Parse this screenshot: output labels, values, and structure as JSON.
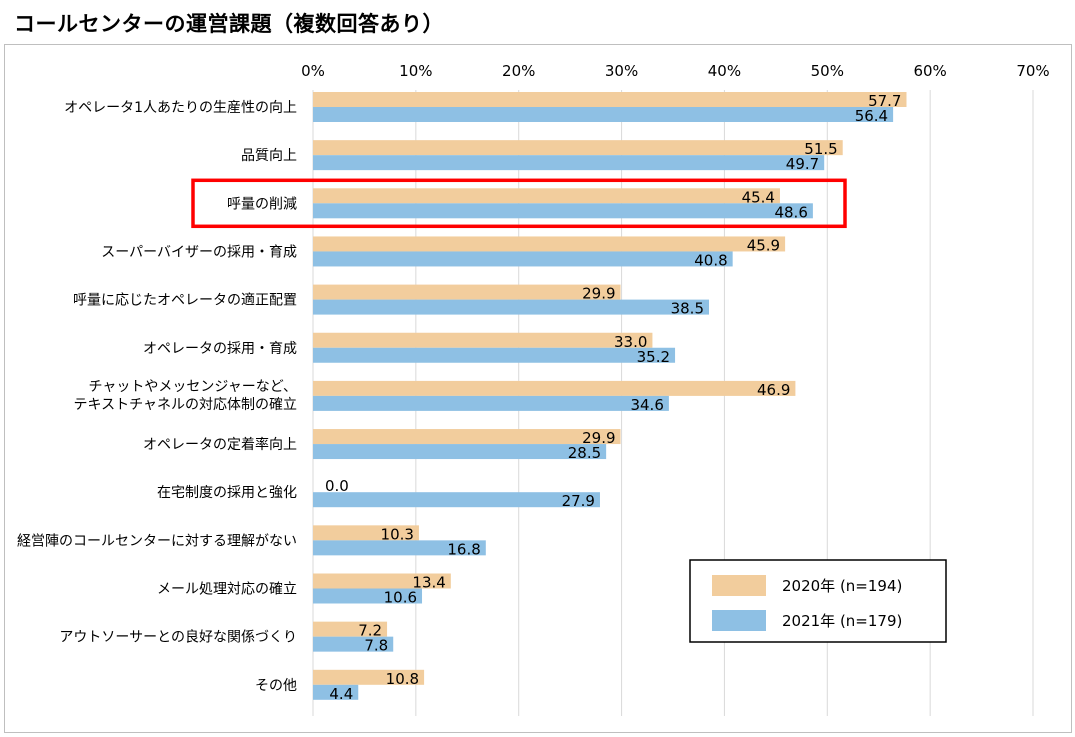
{
  "page_title": "コールセンターの運営課題（複数回答あり）",
  "colors": {
    "series_2020": "#f2cd9d",
    "series_2021": "#8ec0e4",
    "highlight": "#ff0000",
    "grid": "#d9d9d9"
  },
  "chart_data": {
    "type": "bar",
    "orientation": "horizontal",
    "title": "コールセンターの運営課題（複数回答あり）",
    "xlim": [
      0,
      70
    ],
    "x_ticks": [
      "0%",
      "10%",
      "20%",
      "30%",
      "40%",
      "50%",
      "60%",
      "70%"
    ],
    "x_tick_values": [
      0,
      10,
      20,
      30,
      40,
      50,
      60,
      70
    ],
    "categories": [
      [
        "オペレータ1人あたりの生産性の向上"
      ],
      [
        "品質向上"
      ],
      [
        "呼量の削減"
      ],
      [
        "スーパーバイザーの採用・育成"
      ],
      [
        "呼量に応じたオペレータの適正配置"
      ],
      [
        "オペレータの採用・育成"
      ],
      [
        "チャットやメッセンジャーなど、",
        "テキストチャネルの対応体制の確立"
      ],
      [
        "オペレータの定着率向上"
      ],
      [
        "在宅制度の採用と強化"
      ],
      [
        "経営陣のコールセンターに対する理解がない"
      ],
      [
        "メール処理対応の確立"
      ],
      [
        "アウトソーサーとの良好な関係づくり"
      ],
      [
        "その他"
      ]
    ],
    "series": [
      {
        "name": "2020年 (n=194)",
        "values": [
          57.7,
          51.5,
          45.4,
          45.9,
          29.9,
          33.0,
          46.9,
          29.9,
          0.0,
          10.3,
          13.4,
          7.2,
          10.8
        ],
        "labels": [
          "57.7",
          "51.5",
          "45.4",
          "45.9",
          "29.9",
          "33.0",
          "46.9",
          "29.9",
          "0.0",
          "10.3",
          "13.4",
          "7.2",
          "10.8"
        ]
      },
      {
        "name": "2021年 (n=179)",
        "values": [
          56.4,
          49.7,
          48.6,
          40.8,
          38.5,
          35.2,
          34.6,
          28.5,
          27.9,
          16.8,
          10.6,
          7.8,
          4.4
        ],
        "labels": [
          "56.4",
          "49.7",
          "48.6",
          "40.8",
          "38.5",
          "35.2",
          "34.6",
          "28.5",
          "27.9",
          "16.8",
          "10.6",
          "7.8",
          "4.4"
        ]
      }
    ],
    "highlighted_category": "呼量の削減",
    "legend_position": "bottom-right",
    "grid": true
  }
}
